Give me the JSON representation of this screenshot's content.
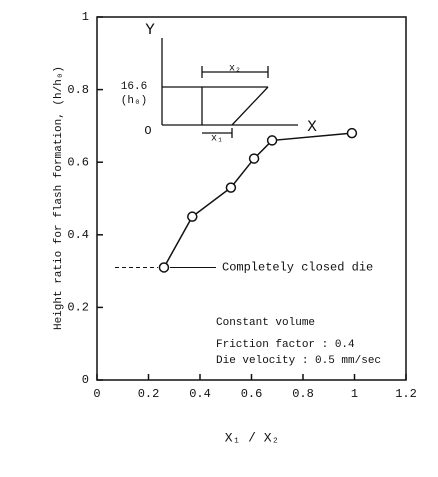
{
  "chart_data": {
    "type": "line",
    "xlabel": "X₁ / X₂",
    "ylabel": "Height ratio for flash formation, (h/h₀)",
    "x": [
      0.26,
      0.37,
      0.52,
      0.61,
      0.68,
      0.99
    ],
    "series": [
      {
        "color": "#111111",
        "values": [
          0.31,
          0.45,
          0.53,
          0.61,
          0.66,
          0.68
        ]
      }
    ],
    "xlim": [
      0,
      1.2
    ],
    "xticks": [
      0,
      0.2,
      0.4,
      0.6,
      0.8,
      1,
      1.2
    ],
    "ylim": [
      0,
      1
    ],
    "yticks": [
      0,
      0.2,
      0.4,
      0.6,
      0.8,
      1
    ],
    "annotations": [
      "Completely closed die",
      "Constant volume",
      "Friction factor : 0.4",
      "Die velocity : 0.5 mm/sec"
    ],
    "inset_labels": [
      "Y",
      "X",
      "O",
      "16.6",
      "(h₀)",
      "x₂",
      "x₁"
    ]
  }
}
